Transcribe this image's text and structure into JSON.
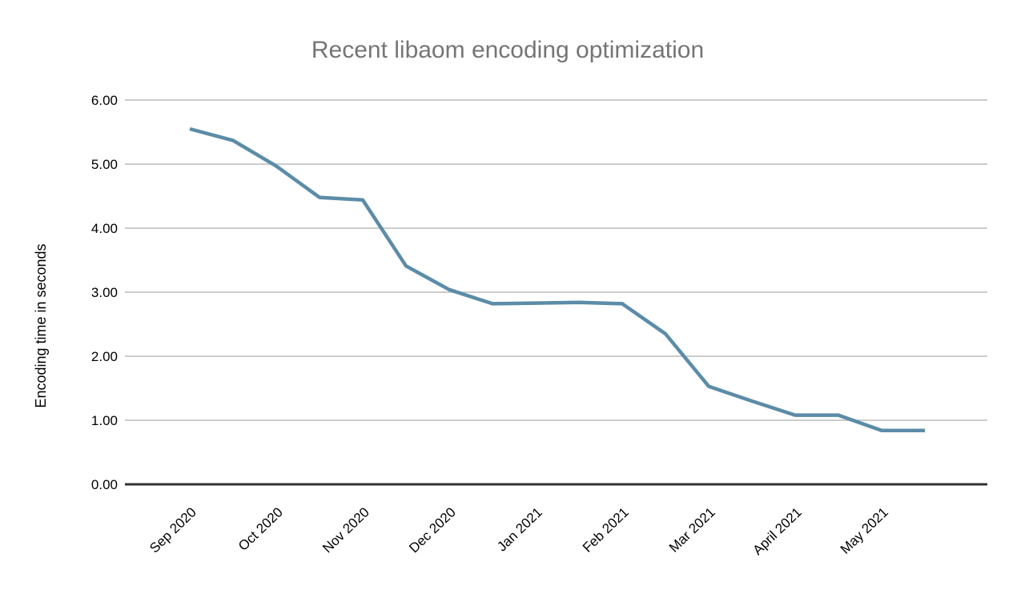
{
  "chart_data": {
    "type": "line",
    "title": "Recent libaom encoding optimization",
    "ylabel": "Encoding time in seconds",
    "xlabel": "",
    "ylim": [
      0,
      6
    ],
    "y_ticks": [
      {
        "value": 0,
        "label": "0.00"
      },
      {
        "value": 1,
        "label": "1.00"
      },
      {
        "value": 2,
        "label": "2.00"
      },
      {
        "value": 3,
        "label": "3.00"
      },
      {
        "value": 4,
        "label": "4.00"
      },
      {
        "value": 5,
        "label": "5.00"
      },
      {
        "value": 6,
        "label": "6.00"
      }
    ],
    "x_tick_labels": [
      "Sep 2020",
      "Oct 2020",
      "Nov 2020",
      "Dec 2020",
      "Jan 2021",
      "Feb 2021",
      "Mar 2021",
      "April 2021",
      "May 2021"
    ],
    "points_per_month": 2,
    "series": [
      {
        "name": "Encoding time in seconds",
        "values": [
          5.55,
          5.37,
          4.97,
          4.48,
          4.44,
          3.41,
          3.04,
          2.82,
          2.83,
          2.84,
          2.82,
          2.35,
          1.53,
          1.3,
          1.08,
          1.08,
          0.84,
          0.84
        ]
      }
    ],
    "legend": "none",
    "grid": "horizontal",
    "colors": {
      "line": "#5b8ca8",
      "grid": "#cccccc",
      "axis_line": "#333333",
      "title": "#757575",
      "tick_text": "#000000",
      "background": "#ffffff"
    }
  }
}
